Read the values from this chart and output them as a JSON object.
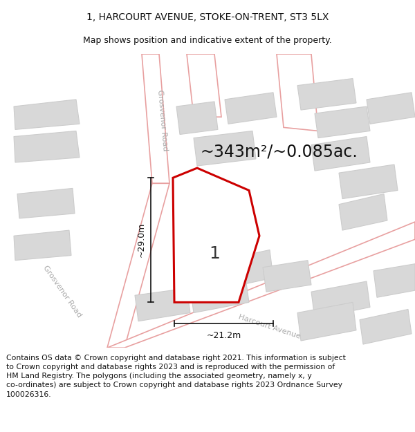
{
  "title": "1, HARCOURT AVENUE, STOKE-ON-TRENT, ST3 5LX",
  "subtitle": "Map shows position and indicative extent of the property.",
  "area_text": "~343m²/~0.085ac.",
  "label_number": "1",
  "dim_width": "~21.2m",
  "dim_height": "~29.0m",
  "bg_color": "#f5f5f5",
  "map_bg": "#f9f9f9",
  "road_fill": "#ffffff",
  "road_edge": "#e8a0a0",
  "road_lw": 1.2,
  "building_fill": "#d8d8d8",
  "building_edge": "#cccccc",
  "building_lw": 0.8,
  "plot_stroke": "#cc0000",
  "plot_fill": "#ffffff",
  "plot_lw": 2.2,
  "dim_color": "#111111",
  "road_label_color": "#aaaaaa",
  "footer_text": "Contains OS data © Crown copyright and database right 2021. This information is subject\nto Crown copyright and database rights 2023 and is reproduced with the permission of\nHM Land Registry. The polygons (including the associated geometry, namely x, y\nco-ordinates) are subject to Crown copyright and database rights 2023 Ordnance Survey\n100026316.",
  "title_fontsize": 10,
  "subtitle_fontsize": 9,
  "area_fontsize": 17,
  "label_fontsize": 18,
  "dim_fontsize": 9,
  "road_label_fontsize": 8,
  "footer_fontsize": 7.8
}
